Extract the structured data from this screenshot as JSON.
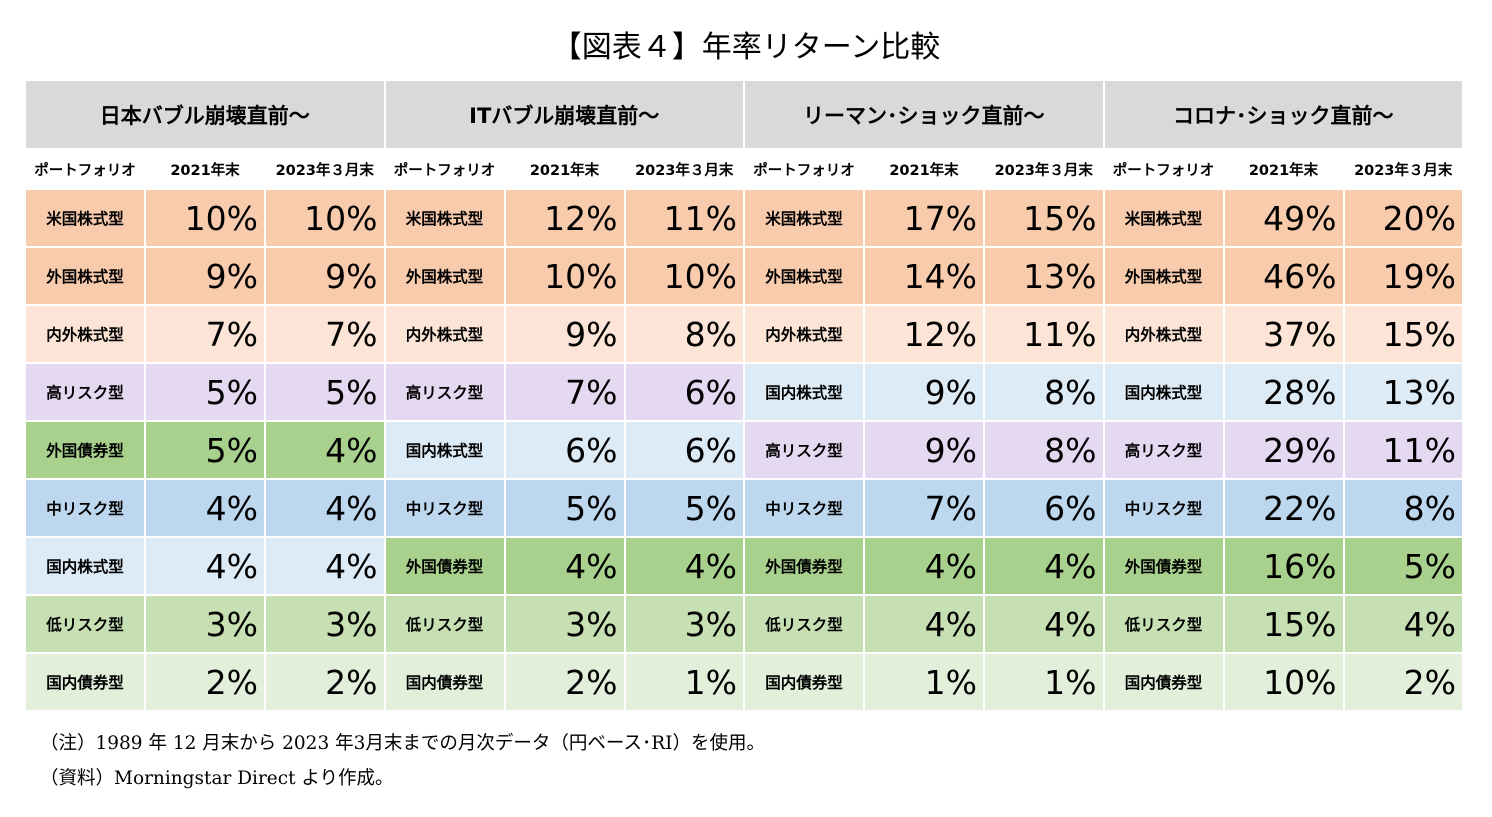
{
  "title": "【図表４】年率リターン比較",
  "colors": {
    "米国株式型": "#f8cbad",
    "外国株式型": "#f8cbad",
    "内外株式型": "#fce4d6",
    "高リスク型": "#e4d9f1",
    "外国債券型": "#a9d18e",
    "中リスク型": "#bdd7ee",
    "国内株式型": "#ddebf7",
    "低リスク型": "#c6e0b4",
    "国内債券型": "#e2efda"
  },
  "chart_data": {
    "type": "table",
    "columns": [
      "ポートフォリオ",
      "2021年末",
      "2023年３月末"
    ],
    "panels": [
      {
        "title": "日本バブル崩壊直前～",
        "rows": [
          {
            "label": "米国株式型",
            "v2021": "10%",
            "v2023": "10%"
          },
          {
            "label": "外国株式型",
            "v2021": "9%",
            "v2023": "9%"
          },
          {
            "label": "内外株式型",
            "v2021": "7%",
            "v2023": "7%"
          },
          {
            "label": "高リスク型",
            "v2021": "5%",
            "v2023": "5%"
          },
          {
            "label": "外国債券型",
            "v2021": "5%",
            "v2023": "4%"
          },
          {
            "label": "中リスク型",
            "v2021": "4%",
            "v2023": "4%"
          },
          {
            "label": "国内株式型",
            "v2021": "4%",
            "v2023": "4%"
          },
          {
            "label": "低リスク型",
            "v2021": "3%",
            "v2023": "3%"
          },
          {
            "label": "国内債券型",
            "v2021": "2%",
            "v2023": "2%"
          }
        ]
      },
      {
        "title": "ITバブル崩壊直前～",
        "rows": [
          {
            "label": "米国株式型",
            "v2021": "12%",
            "v2023": "11%"
          },
          {
            "label": "外国株式型",
            "v2021": "10%",
            "v2023": "10%"
          },
          {
            "label": "内外株式型",
            "v2021": "9%",
            "v2023": "8%"
          },
          {
            "label": "高リスク型",
            "v2021": "7%",
            "v2023": "6%"
          },
          {
            "label": "国内株式型",
            "v2021": "6%",
            "v2023": "6%"
          },
          {
            "label": "中リスク型",
            "v2021": "5%",
            "v2023": "5%"
          },
          {
            "label": "外国債券型",
            "v2021": "4%",
            "v2023": "4%"
          },
          {
            "label": "低リスク型",
            "v2021": "3%",
            "v2023": "3%"
          },
          {
            "label": "国内債券型",
            "v2021": "2%",
            "v2023": "1%"
          }
        ]
      },
      {
        "title": "リーマン･ショック直前～",
        "rows": [
          {
            "label": "米国株式型",
            "v2021": "17%",
            "v2023": "15%"
          },
          {
            "label": "外国株式型",
            "v2021": "14%",
            "v2023": "13%"
          },
          {
            "label": "内外株式型",
            "v2021": "12%",
            "v2023": "11%"
          },
          {
            "label": "国内株式型",
            "v2021": "9%",
            "v2023": "8%"
          },
          {
            "label": "高リスク型",
            "v2021": "9%",
            "v2023": "8%"
          },
          {
            "label": "中リスク型",
            "v2021": "7%",
            "v2023": "6%"
          },
          {
            "label": "外国債券型",
            "v2021": "4%",
            "v2023": "4%"
          },
          {
            "label": "低リスク型",
            "v2021": "4%",
            "v2023": "4%"
          },
          {
            "label": "国内債券型",
            "v2021": "1%",
            "v2023": "1%"
          }
        ]
      },
      {
        "title": "コロナ･ショック直前～",
        "rows": [
          {
            "label": "米国株式型",
            "v2021": "49%",
            "v2023": "20%"
          },
          {
            "label": "外国株式型",
            "v2021": "46%",
            "v2023": "19%"
          },
          {
            "label": "内外株式型",
            "v2021": "37%",
            "v2023": "15%"
          },
          {
            "label": "国内株式型",
            "v2021": "28%",
            "v2023": "13%"
          },
          {
            "label": "高リスク型",
            "v2021": "29%",
            "v2023": "11%"
          },
          {
            "label": "中リスク型",
            "v2021": "22%",
            "v2023": "8%"
          },
          {
            "label": "外国債券型",
            "v2021": "16%",
            "v2023": "5%"
          },
          {
            "label": "低リスク型",
            "v2021": "15%",
            "v2023": "4%"
          },
          {
            "label": "国内債券型",
            "v2021": "10%",
            "v2023": "2%"
          }
        ]
      }
    ]
  },
  "notes": [
    "（注）1989 年 12 月末から 2023 年3月末までの月次データ（円ベース･RI）を使用。",
    "（資料）Morningstar Direct より作成。"
  ]
}
